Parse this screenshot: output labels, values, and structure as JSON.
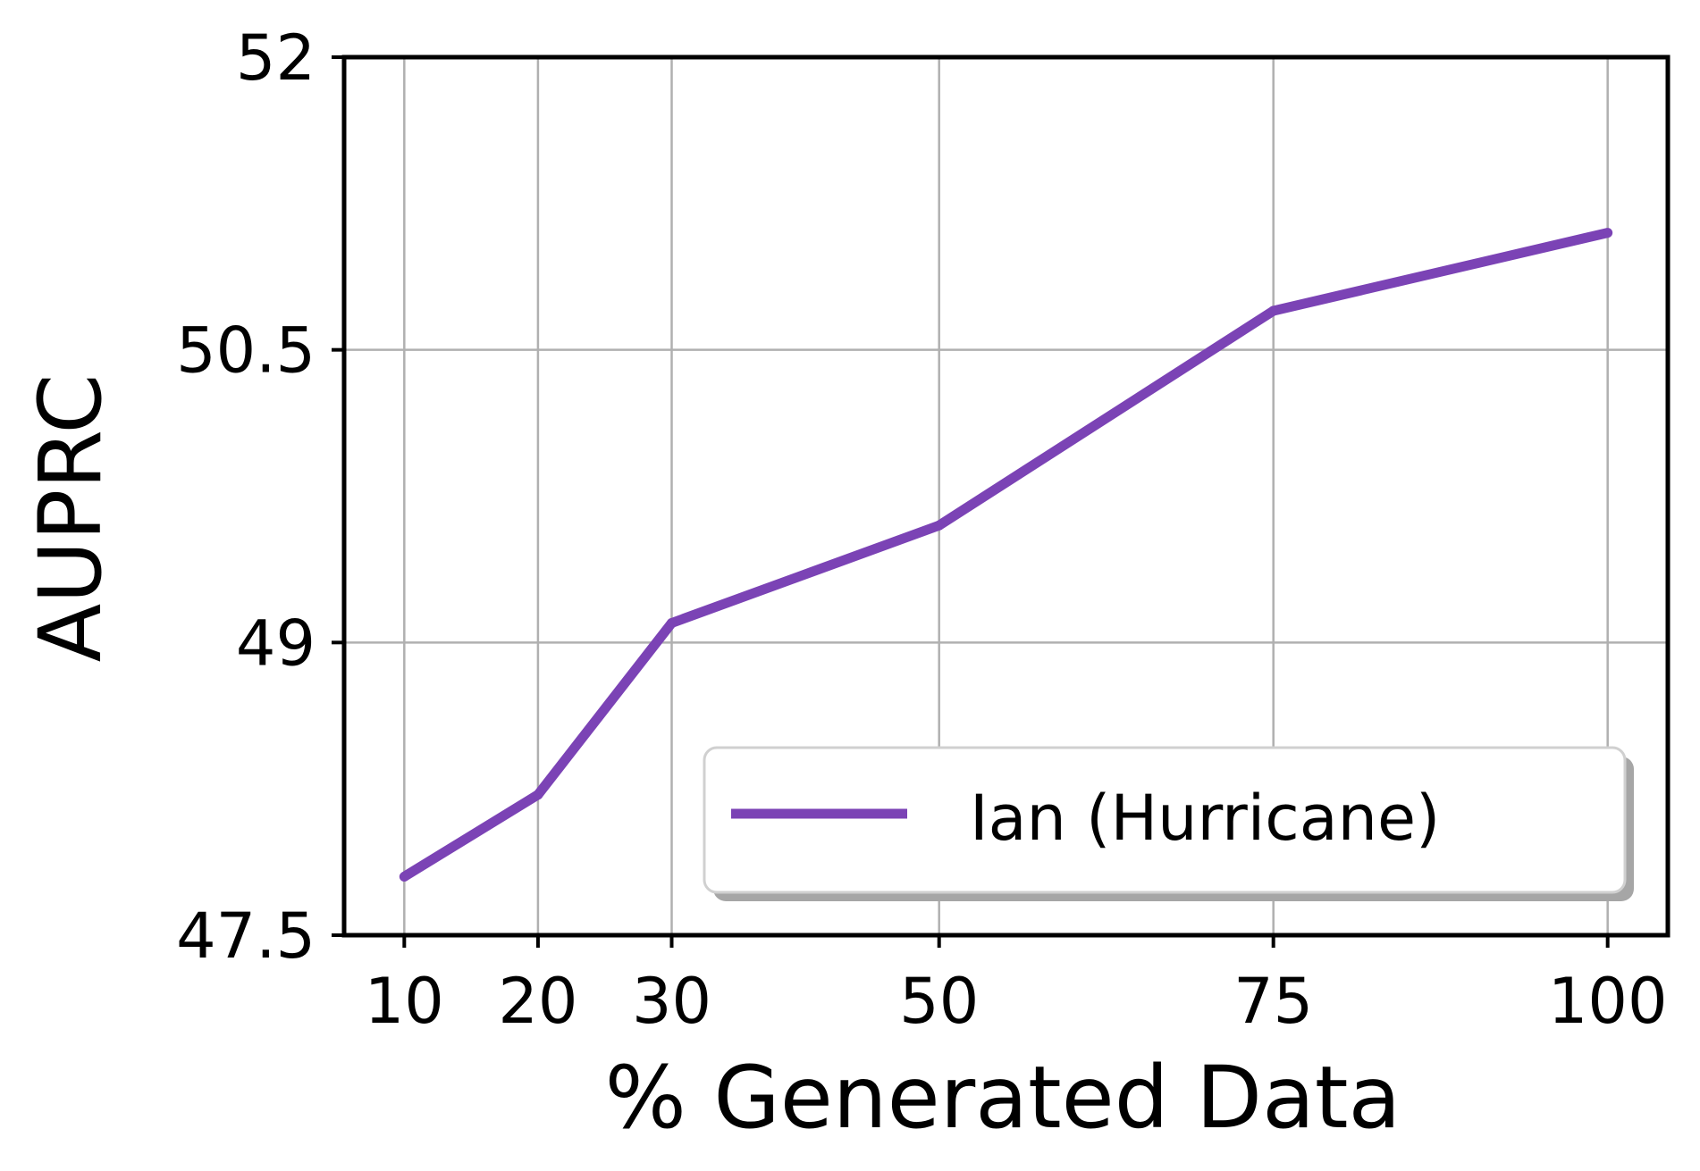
{
  "chart_data": {
    "type": "line",
    "x": [
      10,
      20,
      30,
      50,
      75,
      100
    ],
    "series": [
      {
        "name": "Ian (Hurricane)",
        "values": [
          47.8,
          48.22,
          49.1,
          49.6,
          50.7,
          51.1
        ],
        "color": "#7b43b5"
      }
    ],
    "xticks": [
      10,
      20,
      30,
      50,
      75,
      100
    ],
    "xtick_labels": [
      "10",
      "20",
      "30",
      "50",
      "75",
      "100"
    ],
    "yticks": [
      47.5,
      49,
      50.5,
      52
    ],
    "ytick_labels": [
      "47.5",
      "49",
      "50.5",
      "52"
    ],
    "xlim": [
      5.5,
      104.5
    ],
    "ylim": [
      47.5,
      52
    ],
    "xlabel": "% Generated Data",
    "ylabel": "AUPRC",
    "grid": true,
    "legend_position": "lower-right"
  }
}
